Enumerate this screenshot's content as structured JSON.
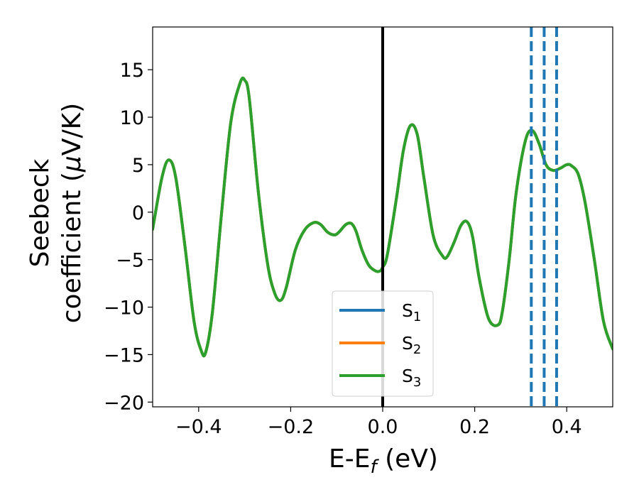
{
  "chart_data": {
    "type": "line",
    "xlabel_main": "E-E",
    "xlabel_sub": "f",
    "xlabel_unit": " (eV)",
    "ylabel_line1": "Seebeck",
    "ylabel_line2_text": "coefficient  (",
    "ylabel_line2_mu": "μ",
    "ylabel_line2_unit": "V/K)",
    "xlim": [
      -0.5,
      0.5
    ],
    "ylim": [
      -20.5,
      19.5
    ],
    "xticks": [
      {
        "value": -0.4,
        "label": "−0.4"
      },
      {
        "value": -0.2,
        "label": "−0.2"
      },
      {
        "value": 0.0,
        "label": "0.0"
      },
      {
        "value": 0.2,
        "label": "0.2"
      },
      {
        "value": 0.4,
        "label": "0.4"
      }
    ],
    "yticks": [
      {
        "value": -20,
        "label": "−20"
      },
      {
        "value": -15,
        "label": "−15"
      },
      {
        "value": -10,
        "label": "−10"
      },
      {
        "value": -5,
        "label": "−5"
      },
      {
        "value": 0,
        "label": "0"
      },
      {
        "value": 5,
        "label": "5"
      },
      {
        "value": 10,
        "label": "10"
      },
      {
        "value": 15,
        "label": "15"
      }
    ],
    "fermi_line_x": 0.0,
    "dashed_lines_x": [
      0.323,
      0.351,
      0.378
    ],
    "legend_placement": "lower-center",
    "series": [
      {
        "name": "S",
        "sub": "1",
        "color": "#1f77b4"
      },
      {
        "name": "S",
        "sub": "2",
        "color": "#ff7f0e"
      },
      {
        "name": "S",
        "sub": "3",
        "color": "#2ca02c"
      }
    ],
    "curve": {
      "x": [
        -0.5,
        -0.48,
        -0.465,
        -0.45,
        -0.43,
        -0.41,
        -0.395,
        -0.385,
        -0.37,
        -0.35,
        -0.33,
        -0.31,
        -0.3,
        -0.29,
        -0.27,
        -0.25,
        -0.235,
        -0.222,
        -0.21,
        -0.19,
        -0.17,
        -0.15,
        -0.135,
        -0.12,
        -0.105,
        -0.095,
        -0.08,
        -0.068,
        -0.058,
        -0.045,
        -0.03,
        -0.015,
        -0.006,
        0.0,
        0.01,
        0.03,
        0.045,
        0.06,
        0.075,
        0.09,
        0.11,
        0.13,
        0.14,
        0.155,
        0.17,
        0.183,
        0.195,
        0.21,
        0.23,
        0.25,
        0.26,
        0.275,
        0.29,
        0.31,
        0.325,
        0.34,
        0.355,
        0.37,
        0.385,
        0.4,
        0.41,
        0.425,
        0.44,
        0.46,
        0.48,
        0.5
      ],
      "y": [
        -1.8,
        3.6,
        5.5,
        3.7,
        -3.5,
        -11.5,
        -14.5,
        -14.8,
        -10.5,
        0.0,
        9.5,
        13.6,
        13.9,
        12.0,
        2.0,
        -5.5,
        -8.5,
        -9.3,
        -8.0,
        -4.0,
        -1.9,
        -1.1,
        -1.3,
        -2.1,
        -2.4,
        -2.1,
        -1.3,
        -1.2,
        -2.0,
        -4.0,
        -5.6,
        -6.2,
        -6.2,
        -5.8,
        -4.5,
        1.5,
        6.5,
        9.1,
        8.2,
        3.5,
        -2.5,
        -4.6,
        -4.7,
        -3.2,
        -1.4,
        -1.0,
        -2.5,
        -7.0,
        -11.2,
        -11.9,
        -10.5,
        -5.0,
        2.0,
        7.5,
        8.6,
        7.2,
        5.0,
        4.4,
        4.6,
        5.0,
        4.9,
        4.0,
        1.0,
        -5.0,
        -11.5,
        -14.4
      ]
    }
  }
}
